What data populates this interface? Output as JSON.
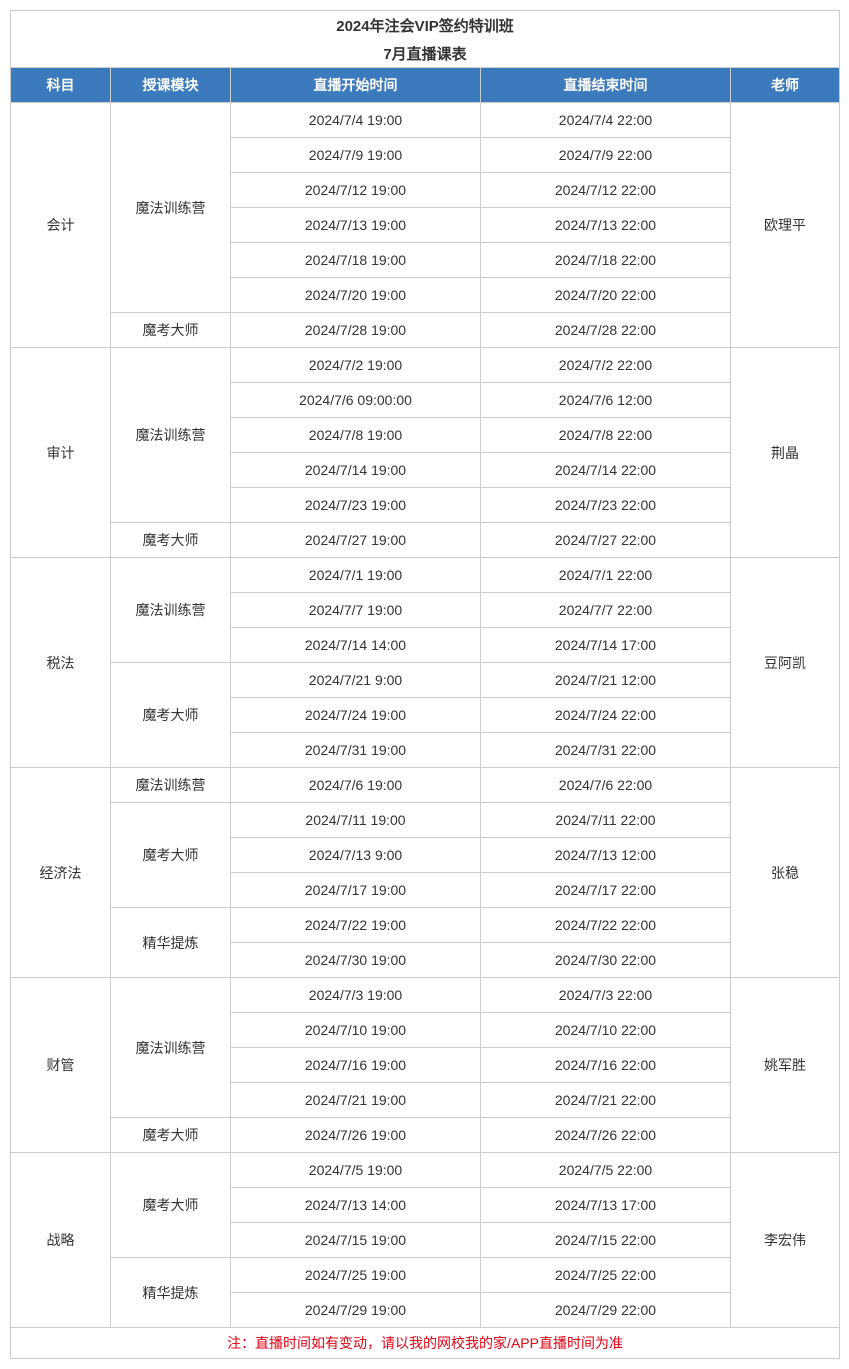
{
  "title_line1": "2024年注会VIP签约特训班",
  "title_line2": "7月直播课表",
  "headers": {
    "subject": "科目",
    "module": "授课模块",
    "start": "直播开始时间",
    "end": "直播结束时间",
    "teacher": "老师"
  },
  "footer_note": "注：直播时间如有变动，请以我的网校我的家/APP直播时间为准",
  "subjects": [
    {
      "name": "会计",
      "teacher": "欧理平",
      "rowcount": 7,
      "modules": [
        {
          "name": "魔法训练营",
          "rows": [
            {
              "start": "2024/7/4 19:00",
              "end": "2024/7/4 22:00"
            },
            {
              "start": "2024/7/9 19:00",
              "end": "2024/7/9 22:00"
            },
            {
              "start": "2024/7/12 19:00",
              "end": "2024/7/12 22:00"
            },
            {
              "start": "2024/7/13 19:00",
              "end": "2024/7/13 22:00"
            },
            {
              "start": "2024/7/18 19:00",
              "end": "2024/7/18 22:00"
            },
            {
              "start": "2024/7/20 19:00",
              "end": "2024/7/20 22:00"
            }
          ]
        },
        {
          "name": "魔考大师",
          "rows": [
            {
              "start": "2024/7/28 19:00",
              "end": "2024/7/28 22:00"
            }
          ]
        }
      ]
    },
    {
      "name": "审计",
      "teacher": "荆晶",
      "rowcount": 6,
      "modules": [
        {
          "name": "魔法训练营",
          "rows": [
            {
              "start": "2024/7/2 19:00",
              "end": "2024/7/2 22:00"
            },
            {
              "start": "2024/7/6 09:00:00",
              "end": "2024/7/6 12:00"
            },
            {
              "start": "2024/7/8 19:00",
              "end": "2024/7/8 22:00"
            },
            {
              "start": "2024/7/14 19:00",
              "end": "2024/7/14 22:00"
            },
            {
              "start": "2024/7/23 19:00",
              "end": "2024/7/23 22:00"
            }
          ]
        },
        {
          "name": "魔考大师",
          "rows": [
            {
              "start": "2024/7/27 19:00",
              "end": "2024/7/27 22:00"
            }
          ]
        }
      ]
    },
    {
      "name": "税法",
      "teacher": "豆阿凯",
      "rowcount": 6,
      "modules": [
        {
          "name": "魔法训练营",
          "rows": [
            {
              "start": "2024/7/1 19:00",
              "end": "2024/7/1 22:00"
            },
            {
              "start": "2024/7/7 19:00",
              "end": "2024/7/7 22:00"
            },
            {
              "start": "2024/7/14 14:00",
              "end": "2024/7/14 17:00"
            }
          ]
        },
        {
          "name": "魔考大师",
          "rows": [
            {
              "start": "2024/7/21 9:00",
              "end": "2024/7/21 12:00"
            },
            {
              "start": "2024/7/24 19:00",
              "end": "2024/7/24 22:00"
            },
            {
              "start": "2024/7/31 19:00",
              "end": "2024/7/31 22:00"
            }
          ]
        }
      ]
    },
    {
      "name": "经济法",
      "teacher": "张稳",
      "rowcount": 6,
      "modules": [
        {
          "name": "魔法训练营",
          "rows": [
            {
              "start": "2024/7/6 19:00",
              "end": "2024/7/6 22:00"
            }
          ]
        },
        {
          "name": "魔考大师",
          "rows": [
            {
              "start": "2024/7/11 19:00",
              "end": "2024/7/11 22:00"
            },
            {
              "start": "2024/7/13 9:00",
              "end": "2024/7/13 12:00"
            },
            {
              "start": "2024/7/17 19:00",
              "end": "2024/7/17 22:00"
            }
          ]
        },
        {
          "name": "精华提炼",
          "rows": [
            {
              "start": "2024/7/22 19:00",
              "end": "2024/7/22 22:00"
            },
            {
              "start": "2024/7/30 19:00",
              "end": "2024/7/30 22:00"
            }
          ]
        }
      ]
    },
    {
      "name": "财管",
      "teacher": "姚军胜",
      "rowcount": 5,
      "modules": [
        {
          "name": "魔法训练营",
          "rows": [
            {
              "start": "2024/7/3 19:00",
              "end": "2024/7/3 22:00"
            },
            {
              "start": "2024/7/10 19:00",
              "end": "2024/7/10 22:00"
            },
            {
              "start": "2024/7/16 19:00",
              "end": "2024/7/16 22:00"
            },
            {
              "start": "2024/7/21 19:00",
              "end": "2024/7/21 22:00"
            }
          ]
        },
        {
          "name": "魔考大师",
          "rows": [
            {
              "start": "2024/7/26 19:00",
              "end": "2024/7/26 22:00"
            }
          ]
        }
      ]
    },
    {
      "name": "战略",
      "teacher": "李宏伟",
      "rowcount": 5,
      "modules": [
        {
          "name": "魔考大师",
          "rows": [
            {
              "start": "2024/7/5 19:00",
              "end": "2024/7/5 22:00"
            },
            {
              "start": "2024/7/13 14:00",
              "end": "2024/7/13 17:00"
            },
            {
              "start": "2024/7/15 19:00",
              "end": "2024/7/15 22:00"
            }
          ]
        },
        {
          "name": "精华提炼",
          "rows": [
            {
              "start": "2024/7/25 19:00",
              "end": "2024/7/25 22:00"
            },
            {
              "start": "2024/7/29 19:00",
              "end": "2024/7/29 22:00"
            }
          ]
        }
      ]
    }
  ]
}
